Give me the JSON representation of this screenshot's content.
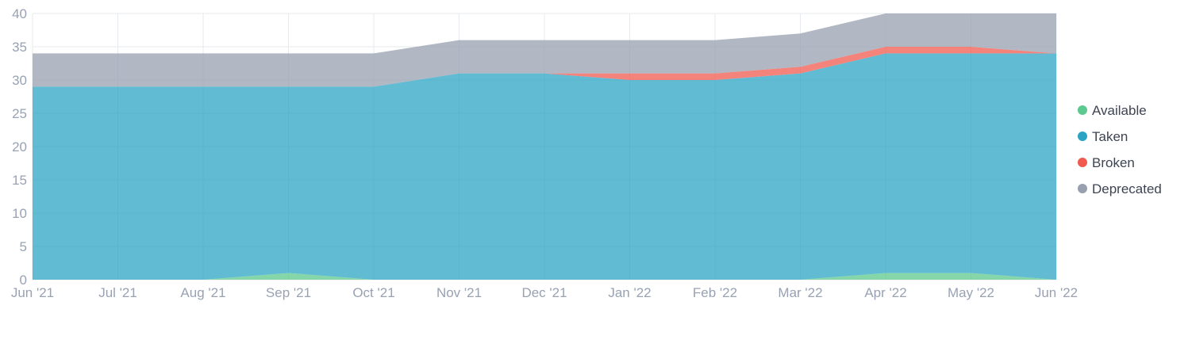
{
  "chart_data": {
    "type": "area",
    "stacked": true,
    "title": "",
    "xlabel": "",
    "ylabel": "",
    "x": [
      "Jun '21",
      "Jul '21",
      "Aug '21",
      "Sep '21",
      "Oct '21",
      "Nov '21",
      "Dec '21",
      "Jan '22",
      "Feb '22",
      "Mar '22",
      "Apr '22",
      "May '22",
      "Jun '22"
    ],
    "ylim": [
      0,
      40
    ],
    "yticks": [
      0,
      5,
      10,
      15,
      20,
      25,
      30,
      35,
      40
    ],
    "grid": true,
    "legend_position": "right",
    "series": [
      {
        "name": "Available",
        "color": "#5cc98e",
        "values": [
          0,
          0,
          0,
          1,
          0,
          0,
          0,
          0,
          0,
          0,
          1,
          1,
          0
        ]
      },
      {
        "name": "Taken",
        "color": "#2ba4c4",
        "values": [
          29,
          29,
          29,
          28,
          29,
          31,
          31,
          30,
          30,
          31,
          33,
          33,
          34
        ]
      },
      {
        "name": "Broken",
        "color": "#f05a4f",
        "values": [
          0,
          0,
          0,
          0,
          0,
          0,
          0,
          1,
          1,
          1,
          1,
          1,
          0
        ]
      },
      {
        "name": "Deprecated",
        "color": "#97a0b0",
        "values": [
          5,
          5,
          5,
          5,
          5,
          5,
          5,
          5,
          5,
          5,
          5,
          5,
          6
        ]
      }
    ]
  }
}
